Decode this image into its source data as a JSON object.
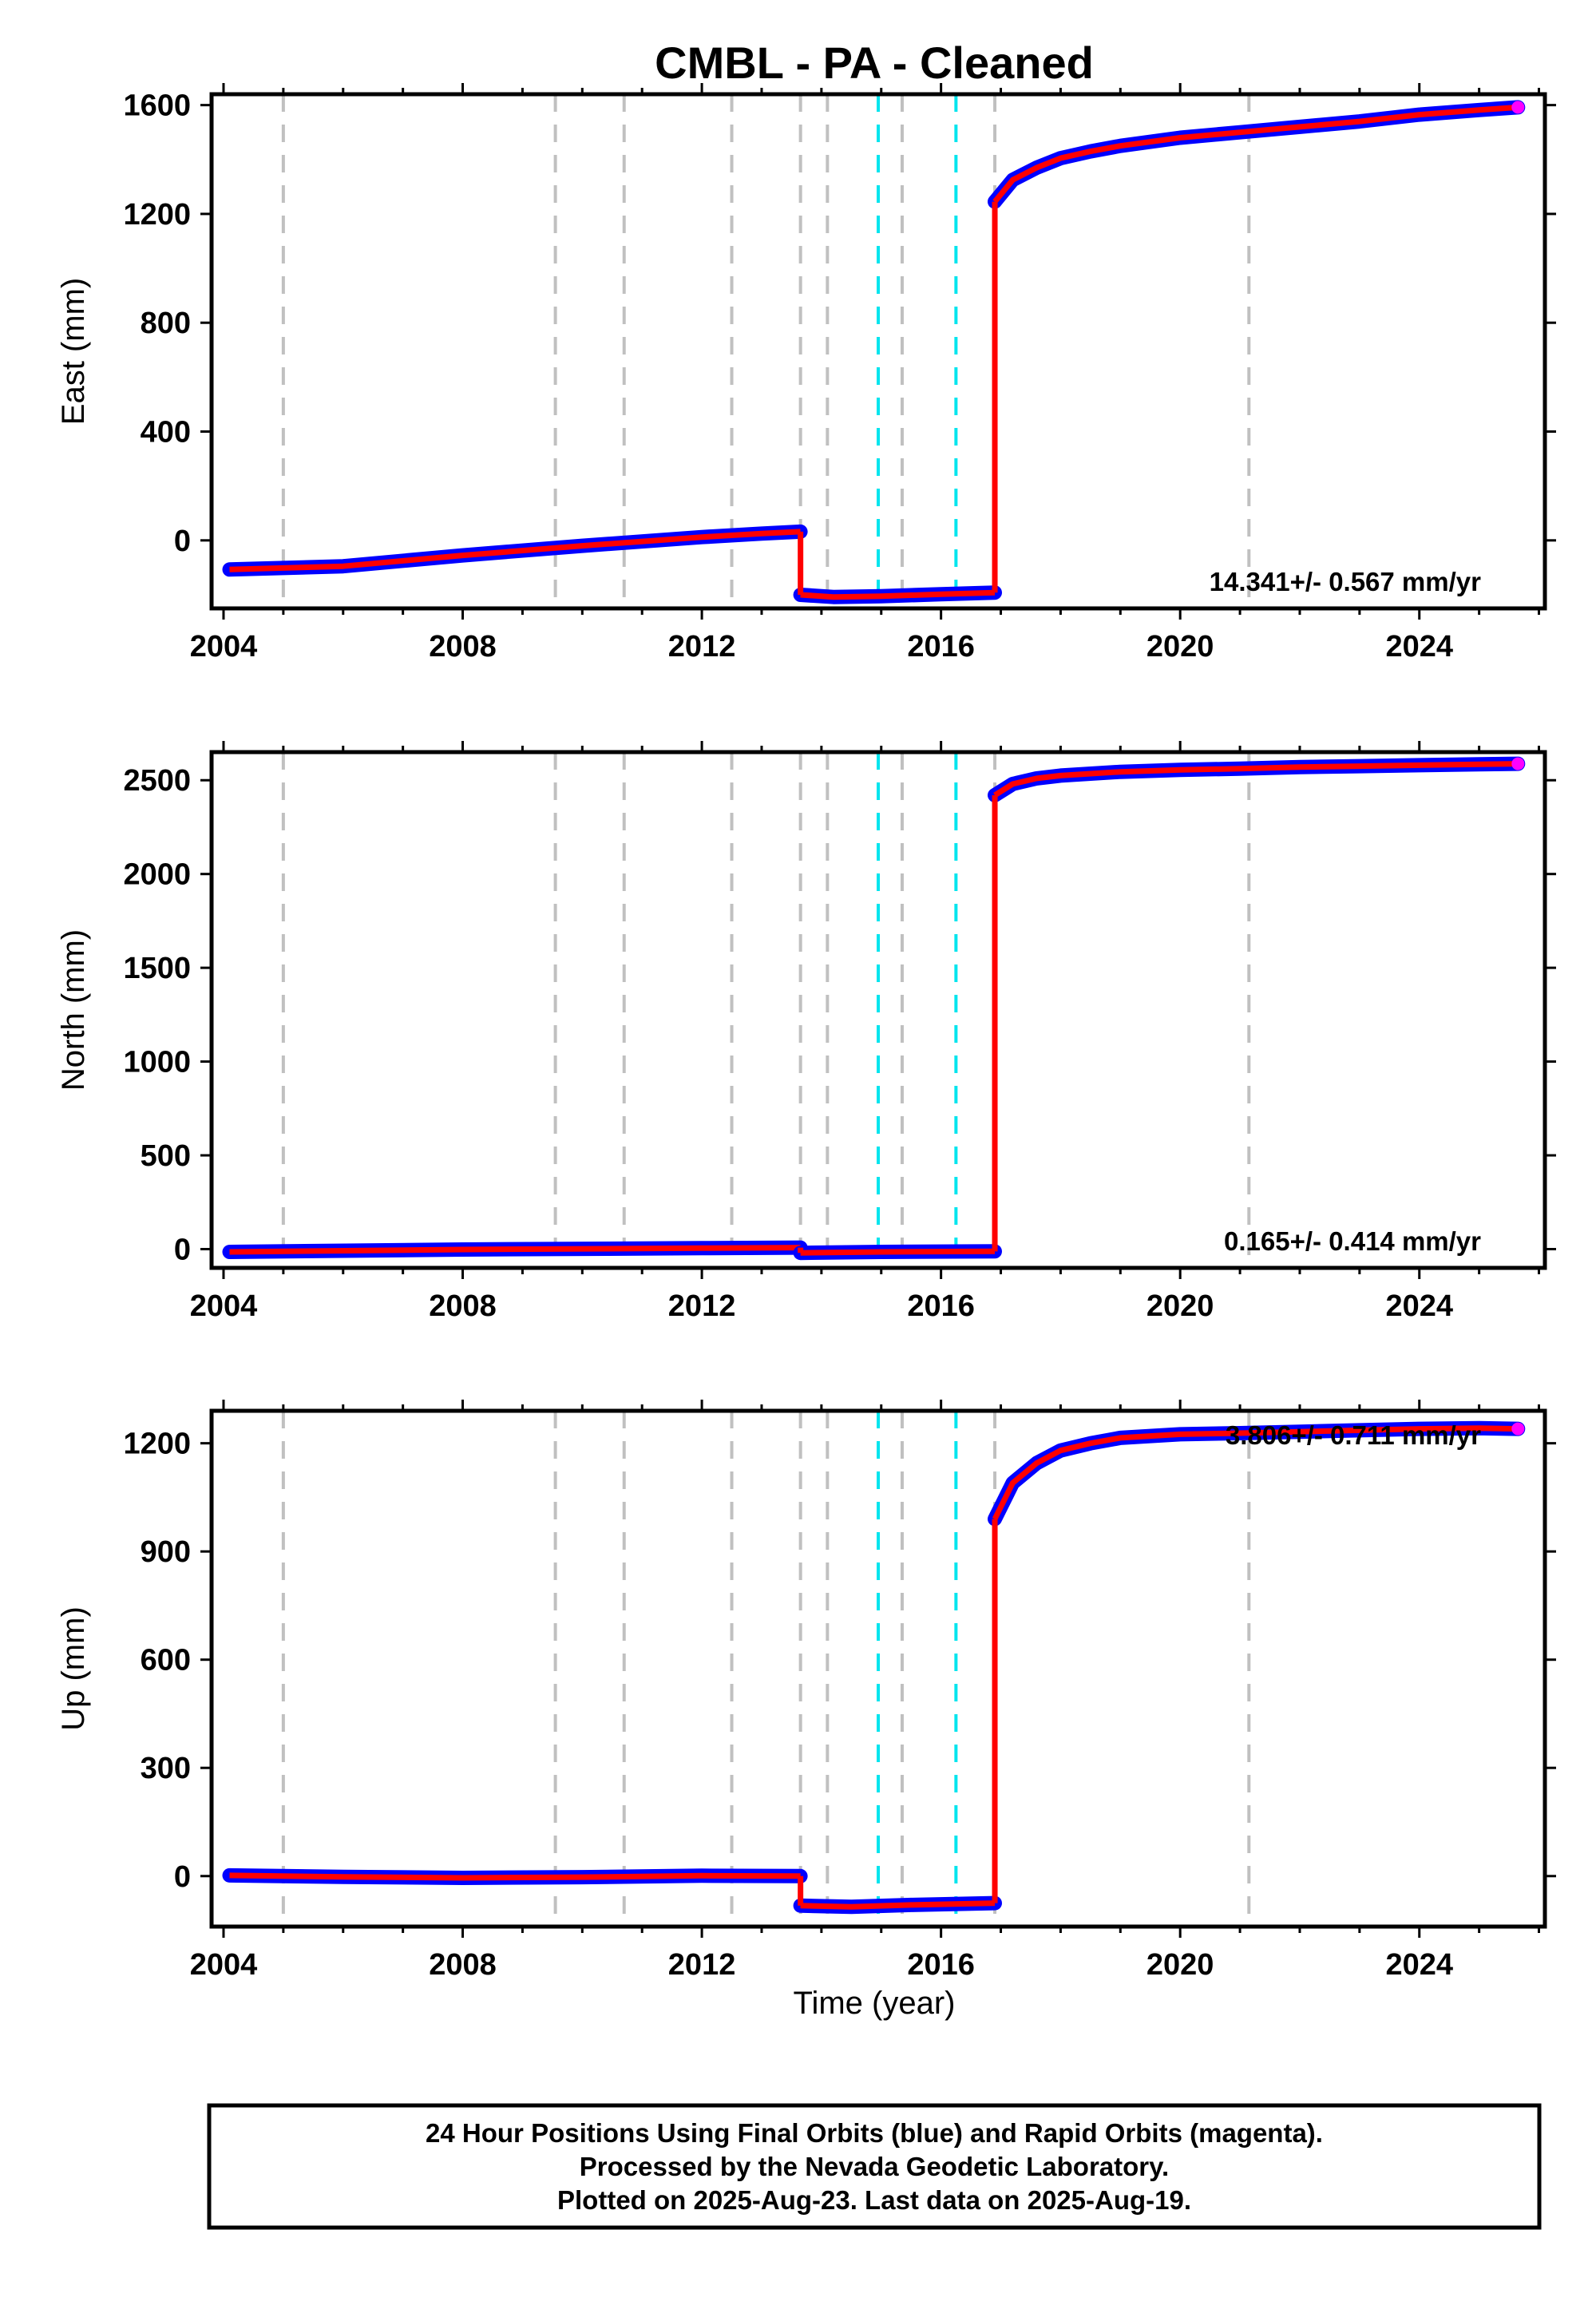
{
  "chart_data": {
    "title": "CMBL  - PA - Cleaned",
    "type": "scatter",
    "xlabel": "Time (year)",
    "xlim": [
      2003.8,
      2026.1
    ],
    "xticks": [
      2004,
      2008,
      2012,
      2016,
      2020,
      2024
    ],
    "vlines_gray": [
      2005.0,
      2009.55,
      2010.7,
      2012.5,
      2013.65,
      2014.1,
      2015.35,
      2016.9,
      2021.15
    ],
    "vlines_cyan": [
      2014.95,
      2016.25
    ],
    "colors": {
      "final": "#0000ff",
      "rapid": "#ff00ff",
      "model": "#ff0000",
      "vline_gray": "#c0c0c0",
      "vline_cyan": "#00e5ee"
    },
    "panels": [
      {
        "name": "east",
        "ylabel": "East (mm)",
        "ylim": [
          -250,
          1640
        ],
        "yticks": [
          0,
          400,
          800,
          1200,
          1600
        ],
        "rate_label": "14.341+/- 0.567 mm/yr",
        "series": [
          {
            "name": "model",
            "segments": [
              {
                "x": [
                  2004.1,
                  2006.0,
                  2008.0,
                  2010.0,
                  2012.0,
                  2013.0,
                  2013.65
                ],
                "y": [
                  -107,
                  -95,
                  -55,
                  -20,
                  12,
                  25,
                  32
                ]
              },
              {
                "x": [
                  2013.65,
                  2014.2,
                  2015.0,
                  2016.0,
                  2016.9
                ],
                "y": [
                  -200,
                  -208,
                  -205,
                  -198,
                  -192
                ]
              },
              {
                "x": [
                  2016.9,
                  2017.2,
                  2017.6,
                  2018.0,
                  2018.5,
                  2019.0,
                  2020.0,
                  2021.0,
                  2022.0,
                  2023.0,
                  2024.0,
                  2025.0,
                  2025.65
                ],
                "y": [
                  1245,
                  1325,
                  1370,
                  1405,
                  1430,
                  1450,
                  1480,
                  1500,
                  1520,
                  1540,
                  1565,
                  1582,
                  1592
                ]
              }
            ]
          }
        ]
      },
      {
        "name": "north",
        "ylabel": "North (mm)",
        "ylim": [
          -100,
          2650
        ],
        "yticks": [
          0,
          500,
          1000,
          1500,
          2000,
          2500
        ],
        "rate_label": "0.165+/- 0.414 mm/yr",
        "series": [
          {
            "name": "model",
            "segments": [
              {
                "x": [
                  2004.1,
                  2008.0,
                  2012.0,
                  2013.65
                ],
                "y": [
                  -15,
                  -2,
                  5,
                  8
                ]
              },
              {
                "x": [
                  2013.65,
                  2015.0,
                  2016.9
                ],
                "y": [
                  -20,
                  -15,
                  -12
                ]
              },
              {
                "x": [
                  2016.9,
                  2017.2,
                  2017.6,
                  2018.0,
                  2019.0,
                  2020.0,
                  2021.0,
                  2022.0,
                  2023.0,
                  2024.0,
                  2025.0,
                  2025.65
                ],
                "y": [
                  2420,
                  2480,
                  2510,
                  2525,
                  2545,
                  2555,
                  2562,
                  2570,
                  2575,
                  2580,
                  2585,
                  2588
                ]
              }
            ]
          }
        ]
      },
      {
        "name": "up",
        "ylabel": "Up (mm)",
        "ylim": [
          -140,
          1290
        ],
        "yticks": [
          0,
          300,
          600,
          900,
          1200
        ],
        "rate_label": "3.806+/- 0.711 mm/yr",
        "series": [
          {
            "name": "model",
            "segments": [
              {
                "x": [
                  2004.1,
                  2006.0,
                  2008.0,
                  2010.0,
                  2012.0,
                  2013.65
                ],
                "y": [
                  2,
                  -2,
                  -5,
                  -3,
                  1,
                  0
                ]
              },
              {
                "x": [
                  2013.65,
                  2014.5,
                  2015.5,
                  2016.9
                ],
                "y": [
                  -82,
                  -85,
                  -80,
                  -75
                ]
              },
              {
                "x": [
                  2016.9,
                  2017.2,
                  2017.6,
                  2018.0,
                  2018.5,
                  2019.0,
                  2020.0,
                  2021.0,
                  2022.0,
                  2023.0,
                  2024.0,
                  2025.0,
                  2025.65
                ],
                "y": [
                  990,
                  1090,
                  1145,
                  1180,
                  1200,
                  1215,
                  1225,
                  1228,
                  1232,
                  1236,
                  1240,
                  1242,
                  1240
                ]
              }
            ]
          }
        ]
      }
    ]
  },
  "footer": {
    "line1": "24 Hour Positions Using Final Orbits (blue) and Rapid Orbits (magenta).",
    "line2": "Processed by the Nevada Geodetic Laboratory.",
    "line3": "Plotted on 2025-Aug-23. Last data on 2025-Aug-19."
  }
}
